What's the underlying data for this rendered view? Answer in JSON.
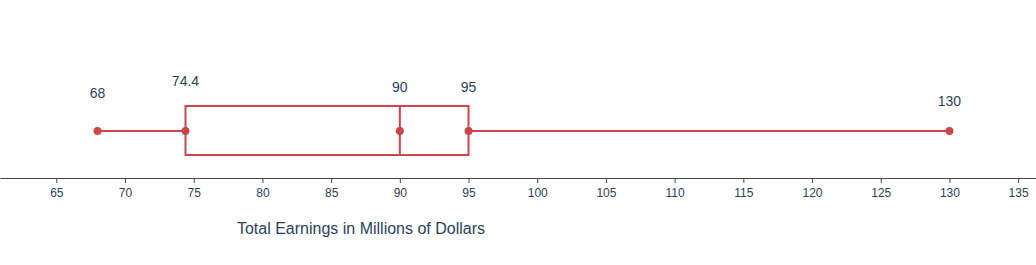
{
  "chart_data": {
    "type": "box",
    "xlabel": "Total Earnings in Millions of Dollars",
    "min": 68,
    "q1": 74.4,
    "median": 90,
    "q3": 95,
    "max": 130,
    "xlim": [
      60.9,
      136.3
    ],
    "xticks": [
      65,
      70,
      75,
      80,
      85,
      90,
      95,
      100,
      105,
      110,
      115,
      120,
      125,
      130,
      135
    ],
    "color": "#c8474a",
    "data_labels": true
  }
}
